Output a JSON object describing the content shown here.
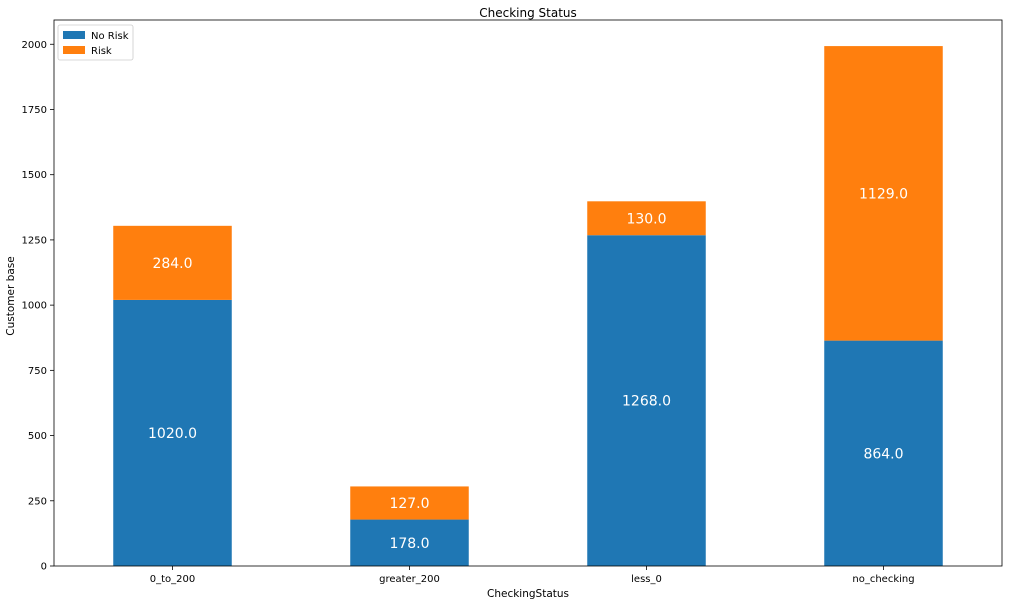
{
  "chart_data": {
    "type": "bar",
    "stacked": true,
    "title": "Checking Status",
    "xlabel": "CheckingStatus",
    "ylabel": "Customer base",
    "categories": [
      "0_to_200",
      "greater_200",
      "less_0",
      "no_checking"
    ],
    "series": [
      {
        "name": "No Risk",
        "color": "#1f77b4",
        "values": [
          1020,
          178,
          1268,
          864
        ],
        "labels": [
          "1020.0",
          "178.0",
          "1268.0",
          "864.0"
        ]
      },
      {
        "name": "Risk",
        "color": "#ff7f0e",
        "values": [
          284,
          127,
          130,
          1129
        ],
        "labels": [
          "284.0",
          "127.0",
          "130.0",
          "1129.0"
        ]
      }
    ],
    "ylim": [
      0,
      2093
    ],
    "yticks": [
      0,
      250,
      500,
      750,
      1000,
      1250,
      1500,
      1750,
      2000
    ],
    "legend_position": "top-left",
    "grid": false
  }
}
